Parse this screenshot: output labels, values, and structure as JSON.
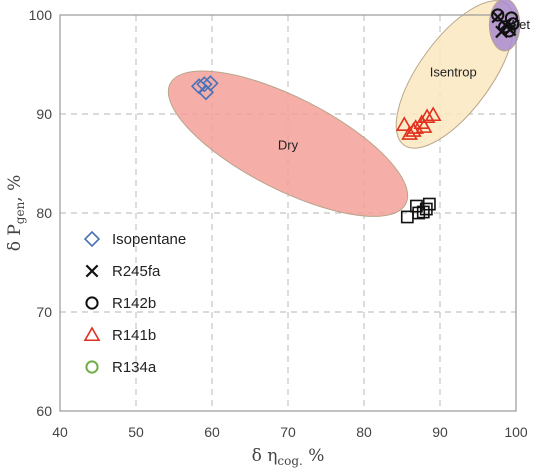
{
  "chart_data": {
    "type": "scatter",
    "title": "",
    "xlabel": {
      "main": "δ η",
      "sub": "cog.",
      "unit": " %"
    },
    "ylabel": {
      "main": "δ P",
      "sub": "gen",
      "unit": ", %"
    },
    "xlim": [
      40,
      100
    ],
    "ylim": [
      60,
      100
    ],
    "xticks": [
      40,
      50,
      60,
      70,
      80,
      90,
      100
    ],
    "yticks": [
      60,
      70,
      80,
      90,
      100
    ],
    "grid": true,
    "legend_position": "left",
    "regions": [
      {
        "label": "Dry",
        "color": "#f4a09a",
        "center": [
          70,
          87
        ],
        "x_extent": [
          56.5,
          87.5
        ],
        "tilt_deg": 27
      },
      {
        "label": "Isentrop",
        "color": "#fbe7bf",
        "center": [
          92,
          94
        ],
        "x_extent": [
          86,
          99.5
        ],
        "tilt_deg": -54
      },
      {
        "label": "Wet",
        "color": "#a88bd0",
        "center": [
          98.5,
          99
        ],
        "x_extent": [
          96.5,
          100.5
        ],
        "tilt_deg": 0
      }
    ],
    "series": [
      {
        "name": "Isopentane",
        "marker": "diamond",
        "color": "#4a72b8",
        "points": [
          [
            58.3,
            92.8
          ],
          [
            59.2,
            92.2
          ],
          [
            59.8,
            93.1
          ],
          [
            59.0,
            93.0
          ]
        ]
      },
      {
        "name": "R245fa",
        "marker": "x",
        "color": "#111111",
        "points": [
          [
            97.6,
            99.8
          ],
          [
            98.6,
            99.0
          ],
          [
            99.2,
            98.5
          ],
          [
            98.1,
            98.3
          ]
        ]
      },
      {
        "name": "R142b",
        "marker": "square-circle",
        "color": "#111111",
        "points": [
          [
            85.7,
            79.6
          ],
          [
            86.9,
            80.7
          ],
          [
            87.8,
            80.1
          ],
          [
            88.6,
            80.9
          ],
          [
            87.2,
            80.0
          ],
          [
            88.2,
            80.4
          ],
          [
            97.6,
            100.0
          ],
          [
            98.5,
            98.8
          ],
          [
            99.4,
            99.7
          ],
          [
            99.1,
            98.4
          ],
          [
            99.6,
            99.1
          ]
        ]
      },
      {
        "name": "R141b",
        "marker": "triangle",
        "color": "#e0301e",
        "points": [
          [
            85.3,
            88.9
          ],
          [
            86.0,
            88.0
          ],
          [
            86.8,
            88.6
          ],
          [
            87.6,
            89.1
          ],
          [
            88.3,
            89.7
          ],
          [
            89.1,
            89.9
          ],
          [
            87.9,
            88.7
          ],
          [
            86.5,
            88.3
          ]
        ]
      },
      {
        "name": "R134a",
        "marker": "circle",
        "color": "#70ad47",
        "points": []
      }
    ]
  }
}
